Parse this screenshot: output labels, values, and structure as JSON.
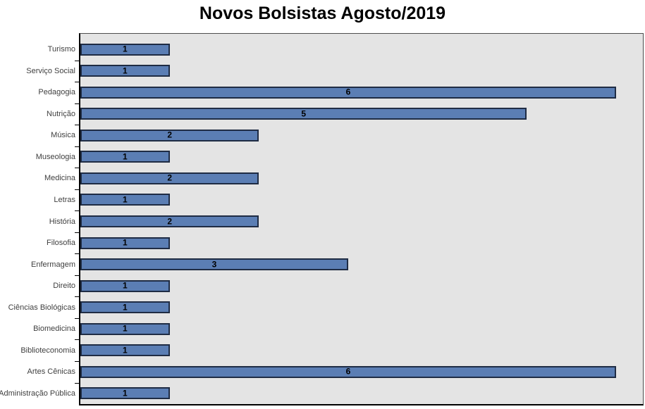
{
  "title": "Novos Bolsistas Agosto/2019",
  "chart_data": {
    "type": "bar",
    "orientation": "horizontal",
    "title": "Novos Bolsistas Agosto/2019",
    "categories": [
      "Turismo",
      "Serviço Social",
      "Pedagogia",
      "Nutrição",
      "Música",
      "Museologia",
      "Medicina",
      "Letras",
      "História",
      "Filosofia",
      "Enfermagem",
      "Direito",
      "Ciências Biológicas",
      "Biomedicina",
      "Biblioteconomia",
      "Artes Cênicas",
      "Administração Pública"
    ],
    "values": [
      1,
      1,
      6,
      5,
      2,
      1,
      2,
      1,
      2,
      1,
      3,
      1,
      1,
      1,
      1,
      6,
      1
    ],
    "xlabel": "",
    "ylabel": "",
    "xlim": [
      0,
      6.3
    ],
    "grid": false,
    "legend": false,
    "data_labels_position": "center",
    "colors": {
      "bar_fill": "#5B7EB4",
      "bar_border": "#1F2C44",
      "plot_background": "#E4E4E4",
      "axis_line": "#000000",
      "tick": "#000000",
      "title_text": "#000000",
      "category_label": "#3F3F3F",
      "value_label": "#000000"
    }
  }
}
